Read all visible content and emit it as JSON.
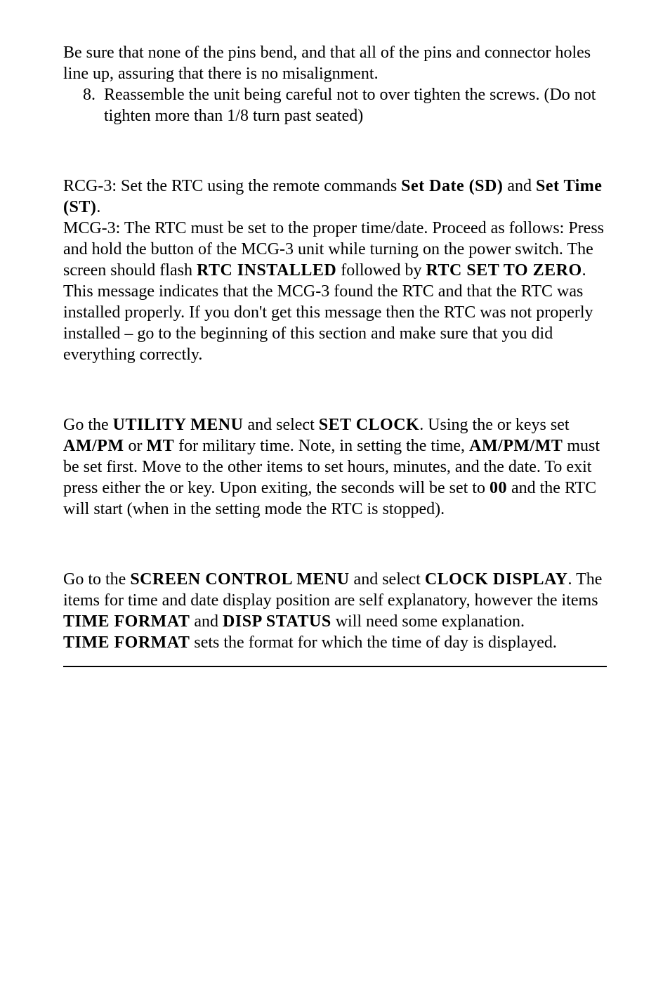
{
  "step_continuation": "Be sure that none of the pins bend, and that all of the pins and connector holes line up, assuring that there is no misalignment.",
  "steps": [
    {
      "num": "8.",
      "text": "Reassemble the unit being careful not to over tighten the screws. (Do not tighten more than 1/8 turn past seated)"
    }
  ],
  "p1_a": "RCG-3: Set the RTC using the remote commands ",
  "p1_b": "Set Date (SD)",
  "p1_c": " and ",
  "p1_d": "Set Time (ST)",
  "p1_e": ".",
  "p2_a": "MCG-3: The RTC must be set to the proper time/date. Proceed as follows: Press and hold the            button of the MCG-3 unit while turning on the power switch. The screen should flash ",
  "p2_b": "RTC INSTALLED",
  "p2_c": " followed by ",
  "p2_d": "RTC SET TO ZERO",
  "p2_e": ". This message indicates that the MCG-3 found the RTC and that the RTC was installed properly. If you don't get this message then the RTC was not properly installed – go to the beginning of this section and make sure that you did everything correctly.",
  "p3_a": "Go the ",
  "p3_b": "UTILITY MENU",
  "p3_c": " and select ",
  "p3_d": "SET CLOCK",
  "p3_e": ". Using the           or             keys set ",
  "p3_f": "AM/PM",
  "p3_g": " or ",
  "p3_h": "MT",
  "p3_i": " for military time. Note, in setting the time, ",
  "p3_j": "AM/PM/MT",
  "p3_k": " must be set first. Move to the other items to set hours, minutes, and the date. To exit press either the            or                  key. Upon exiting, the seconds will be set to ",
  "p3_l": "00",
  "p3_m": " and the RTC will start (when in the setting mode the RTC is stopped).",
  "p4_a": "Go to the ",
  "p4_b": "SCREEN CONTROL MENU",
  "p4_c": " and select ",
  "p4_d": "CLOCK DISPLAY",
  "p4_e": ". The items for time and date display position are self explanatory, however the items ",
  "p4_f": "TIME FORMAT",
  "p4_g": " and ",
  "p4_h": "DISP STATUS",
  "p4_i": " will need some explanation.",
  "p5_a": "TIME FORMAT",
  "p5_b": " sets the format for which the time of day is displayed."
}
